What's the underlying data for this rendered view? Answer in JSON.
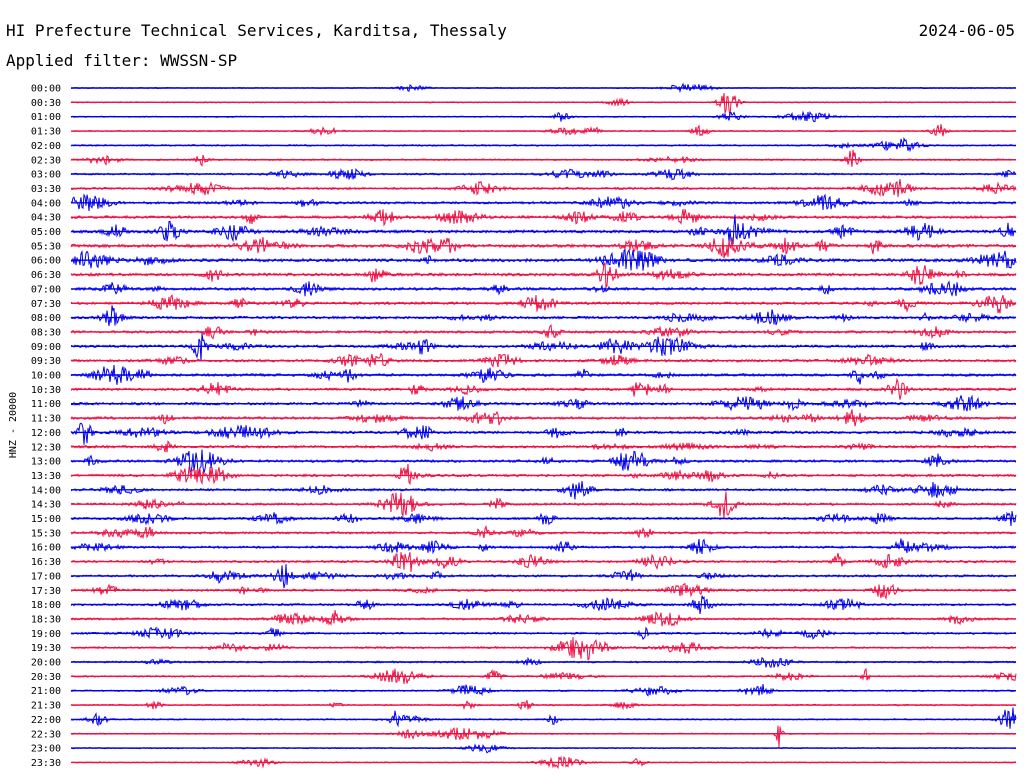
{
  "header": {
    "station": "HI Prefecture Technical Services, Karditsa, Thessaly",
    "date": "2024-06-05",
    "filter": "Applied filter: WWSSN-SP"
  },
  "chart_data": {
    "type": "line",
    "title": "HI Prefecture Technical Services, Karditsa, Thessaly",
    "ylabel": "HNZ - 20000",
    "trace_colors": [
      "#0000ee",
      "#ee1144"
    ],
    "rows": [
      "00:00",
      "00:30",
      "01:00",
      "01:30",
      "02:00",
      "02:30",
      "03:00",
      "03:30",
      "04:00",
      "04:30",
      "05:00",
      "05:30",
      "06:00",
      "06:30",
      "07:00",
      "07:30",
      "08:00",
      "08:30",
      "09:00",
      "09:30",
      "10:00",
      "10:30",
      "11:00",
      "11:30",
      "12:00",
      "12:30",
      "13:00",
      "13:30",
      "14:00",
      "14:30",
      "15:00",
      "15:30",
      "16:00",
      "16:30",
      "17:00",
      "17:30",
      "18:00",
      "18:30",
      "19:00",
      "19:30",
      "20:00",
      "20:30",
      "21:00",
      "21:30",
      "22:00",
      "22:30",
      "23:00",
      "23:30"
    ],
    "noise_level": [
      0.05,
      0.07,
      0.08,
      0.1,
      0.16,
      0.2,
      0.24,
      0.34,
      0.4,
      0.48,
      0.55,
      0.6,
      0.6,
      0.55,
      0.5,
      0.45,
      0.45,
      0.45,
      0.45,
      0.45,
      0.45,
      0.45,
      0.45,
      0.45,
      0.45,
      0.45,
      0.42,
      0.42,
      0.4,
      0.38,
      0.36,
      0.36,
      0.36,
      0.36,
      0.36,
      0.36,
      0.34,
      0.32,
      0.3,
      0.26,
      0.22,
      0.2,
      0.18,
      0.15,
      0.12,
      0.1,
      0.08,
      0.06
    ]
  }
}
